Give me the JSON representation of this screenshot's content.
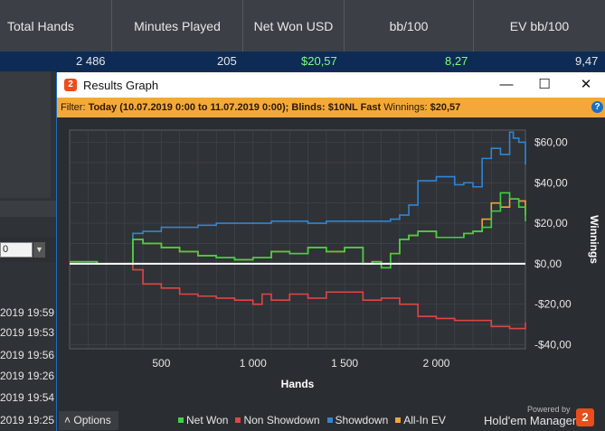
{
  "stats": {
    "headers": [
      "Total Hands",
      "Minutes Played",
      "Net Won USD",
      "bb/100",
      "EV bb/100"
    ],
    "values": [
      "2 486",
      "205",
      "$20,57",
      "8,27",
      "9,47"
    ],
    "net_color": "#7dff7d"
  },
  "background_app": {
    "dropdown_value": "0",
    "rows": [
      "2019 19:59",
      "2019 19:53",
      "2019 19:56",
      "2019 19:26",
      "2019 19:54",
      "2019 19:25"
    ]
  },
  "window": {
    "title": "Results Graph",
    "logo": "2",
    "minimize": "—",
    "maximize": "☐",
    "close": "✕",
    "filter_prefix": "Filter: ",
    "filter_text": "Today (10.07.2019 0:00 to 11.07.2019 0:00); Blinds: $10NL Fast",
    "winnings_label": " Winnings: ",
    "winnings_value": "$20,57",
    "help": "?"
  },
  "chart_data": {
    "type": "line",
    "xlabel": "Hands",
    "ylabel": "Winnings",
    "xlim": [
      0,
      2486
    ],
    "ylim": [
      -42,
      66
    ],
    "x_ticks": [
      500,
      1000,
      1500,
      2000
    ],
    "x_tick_labels": [
      "500",
      "1 000",
      "1 500",
      "2 000"
    ],
    "y_ticks": [
      60,
      40,
      20,
      0,
      -20,
      -40
    ],
    "y_tick_labels": [
      "$60,00",
      "$40,00",
      "$20,00",
      "$0,00",
      "-$20,00",
      "-$40,00"
    ],
    "grid": true,
    "series": [
      {
        "name": "Showdown",
        "color": "#2f86d6",
        "x": [
          0,
          150,
          330,
          345,
          400,
          500,
          600,
          700,
          800,
          900,
          1000,
          1100,
          1200,
          1300,
          1400,
          1500,
          1600,
          1700,
          1750,
          1800,
          1850,
          1900,
          2000,
          2100,
          2150,
          2200,
          2250,
          2300,
          2350,
          2400,
          2420,
          2450,
          2486
        ],
        "y": [
          0,
          0,
          0,
          15,
          16,
          18,
          18,
          19,
          20,
          20,
          20,
          21,
          21,
          20,
          21,
          21,
          21,
          21,
          22,
          24,
          29,
          41,
          43,
          39,
          40,
          38,
          52,
          57,
          54,
          65,
          62,
          60,
          49
        ]
      },
      {
        "name": "Non Showdown",
        "color": "#e14545",
        "x": [
          0,
          200,
          345,
          400,
          500,
          600,
          700,
          800,
          900,
          1000,
          1050,
          1100,
          1200,
          1300,
          1400,
          1500,
          1600,
          1700,
          1800,
          1900,
          2000,
          2100,
          2200,
          2300,
          2400,
          2486
        ],
        "y": [
          0,
          0,
          -3,
          -10,
          -12,
          -15,
          -16,
          -17,
          -18,
          -20,
          -15,
          -18,
          -15,
          -17,
          -14,
          -14,
          -18,
          -17,
          -20,
          -26,
          -27,
          -28,
          -28,
          -31,
          -32,
          -29
        ]
      },
      {
        "name": "All-In EV",
        "color": "#f0a43a",
        "x": [
          0,
          150,
          330,
          345,
          400,
          500,
          600,
          700,
          800,
          900,
          1000,
          1100,
          1200,
          1300,
          1400,
          1500,
          1600,
          1650,
          1700,
          1750,
          1800,
          1850,
          1900,
          2000,
          2100,
          2150,
          2200,
          2250,
          2300,
          2350,
          2400,
          2450,
          2486
        ],
        "y": [
          1,
          0,
          0,
          12,
          10,
          8,
          6,
          4,
          3,
          2,
          3,
          6,
          5,
          8,
          6,
          8,
          0,
          1,
          -2,
          5,
          12,
          14,
          16,
          13,
          13,
          15,
          16,
          22,
          30,
          28,
          32,
          31,
          24
        ]
      },
      {
        "name": "Net Won",
        "color": "#3fd43f",
        "x": [
          0,
          150,
          330,
          345,
          400,
          500,
          600,
          700,
          800,
          900,
          1000,
          1100,
          1200,
          1300,
          1400,
          1500,
          1600,
          1650,
          1700,
          1750,
          1800,
          1850,
          1900,
          2000,
          2100,
          2150,
          2200,
          2250,
          2300,
          2350,
          2400,
          2450,
          2486
        ],
        "y": [
          1,
          0,
          0,
          12,
          10,
          8,
          6,
          4,
          3,
          2,
          3,
          6,
          5,
          8,
          6,
          8,
          0,
          1,
          -2,
          5,
          12,
          14,
          16,
          13,
          13,
          15,
          16,
          18,
          26,
          35,
          32,
          28,
          21
        ]
      }
    ],
    "legend": [
      "Net Won",
      "Non Showdown",
      "Showdown",
      "All-In EV"
    ]
  },
  "bottom": {
    "options_label": "Options",
    "options_arrow": "˄",
    "powered_by": "Powered by",
    "brand": "Hold'em Manager",
    "brand_logo": "2"
  }
}
